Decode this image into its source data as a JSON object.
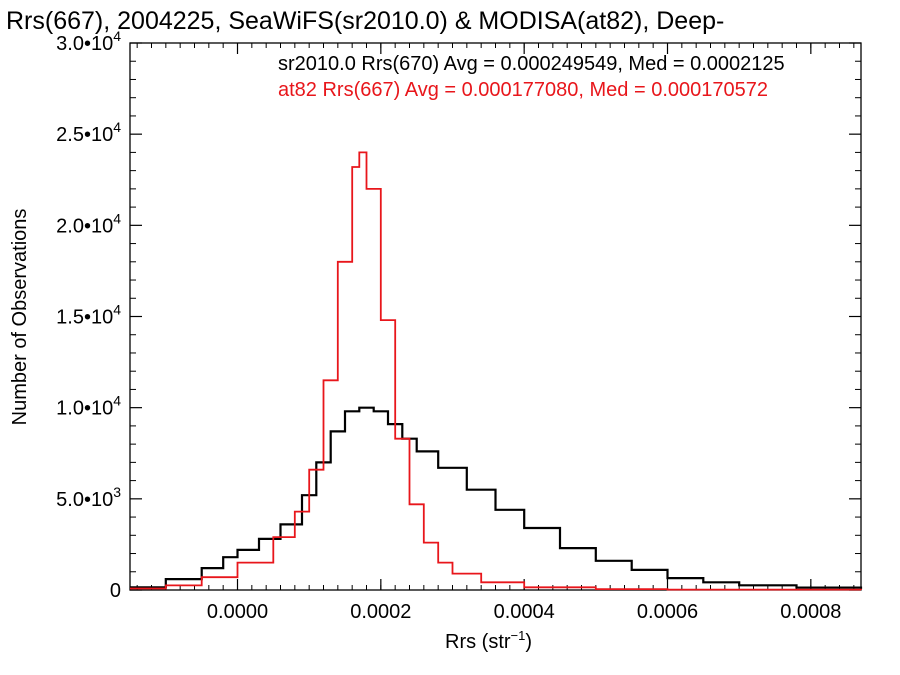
{
  "chart_data": {
    "type": "line",
    "title": "Rrs(667), 2004225, SeaWiFS(sr2010.0) & MODISA(at82), Deep-",
    "xlabel": "Rrs (str",
    "xlabel_sup": "−1",
    "xlabel_end": ")",
    "ylabel": "Number of Observations",
    "xlim": [
      -0.00015,
      0.00087
    ],
    "ylim": [
      0,
      30000
    ],
    "x_ticks": [
      {
        "value": 0.0,
        "label": "0.0000"
      },
      {
        "value": 0.0002,
        "label": "0.0002"
      },
      {
        "value": 0.0004,
        "label": "0.0004"
      },
      {
        "value": 0.0006,
        "label": "0.0006"
      },
      {
        "value": 0.0008,
        "label": "0.0008"
      }
    ],
    "y_ticks": [
      {
        "value": 0,
        "mant": "0",
        "exp": ""
      },
      {
        "value": 5000,
        "mant": "5.0•10",
        "exp": "3"
      },
      {
        "value": 10000,
        "mant": "1.0•10",
        "exp": "4"
      },
      {
        "value": 15000,
        "mant": "1.5•10",
        "exp": "4"
      },
      {
        "value": 20000,
        "mant": "2.0•10",
        "exp": "4"
      },
      {
        "value": 25000,
        "mant": "2.5•10",
        "exp": "4"
      },
      {
        "value": 30000,
        "mant": "3.0•10",
        "exp": "4"
      }
    ],
    "legend": [
      {
        "text": "sr2010.0 Rrs(670) Avg = 0.000249549, Med = 0.0002125",
        "color": "#000000"
      },
      {
        "text": "at82 Rrs(667) Avg = 0.000177080, Med = 0.000170572",
        "color": "#e8161b"
      }
    ],
    "series": [
      {
        "color": "#000000",
        "x": [
          -0.00015,
          -0.0001,
          -5e-05,
          -2e-05,
          0.0,
          3e-05,
          6e-05,
          9e-05,
          0.00011,
          0.00013,
          0.00015,
          0.00017,
          0.00019,
          0.00021,
          0.00023,
          0.00025,
          0.00028,
          0.00032,
          0.00036,
          0.0004,
          0.00045,
          0.0005,
          0.00055,
          0.0006,
          0.00065,
          0.0007,
          0.00078,
          0.00087
        ],
        "y": [
          150,
          600,
          1200,
          1800,
          2200,
          2800,
          3600,
          5200,
          7000,
          8700,
          9800,
          10000,
          9800,
          9100,
          8300,
          7600,
          6700,
          5500,
          4400,
          3400,
          2300,
          1600,
          1100,
          650,
          420,
          260,
          130,
          60
        ]
      },
      {
        "color": "#e8161b",
        "x": [
          -0.00015,
          -0.0001,
          -5e-05,
          0.0,
          5e-05,
          8e-05,
          0.0001,
          0.00012,
          0.00014,
          0.00016,
          0.00017,
          0.00018,
          0.0002,
          0.00022,
          0.00024,
          0.00026,
          0.00028,
          0.0003,
          0.00034,
          0.0004,
          0.0005,
          0.0006,
          0.00087
        ],
        "y": [
          80,
          250,
          700,
          1500,
          2900,
          4300,
          6600,
          11500,
          18000,
          23200,
          24000,
          22000,
          14800,
          8300,
          4700,
          2600,
          1500,
          900,
          420,
          150,
          50,
          20,
          0
        ]
      }
    ]
  }
}
